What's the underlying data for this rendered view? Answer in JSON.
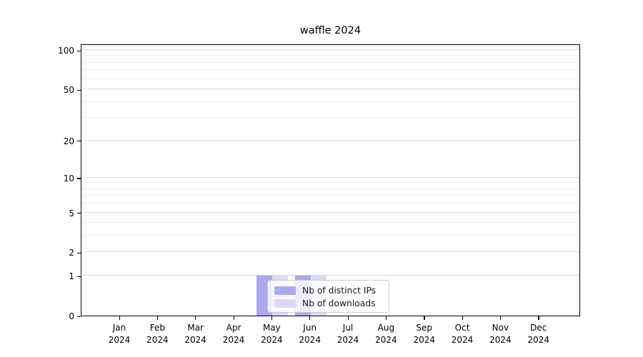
{
  "title": "waffle 2024",
  "colors": {
    "distinct_ips": "#aaaaee",
    "downloads": "#dbdbf7",
    "grid_major": "#dcdcdc",
    "grid_minor": "#f0f0f0",
    "spine": "#000000",
    "legend_border": "#cccccc"
  },
  "legend": {
    "items": [
      {
        "label": "Nb of distinct IPs",
        "color_key": "distinct_ips"
      },
      {
        "label": "Nb of downloads",
        "color_key": "downloads"
      }
    ]
  },
  "chart_data": {
    "type": "bar",
    "title": "waffle 2024",
    "categories": [
      "Jan 2024",
      "Feb 2024",
      "Mar 2024",
      "Apr 2024",
      "May 2024",
      "Jun 2024",
      "Jul 2024",
      "Aug 2024",
      "Sep 2024",
      "Oct 2024",
      "Nov 2024",
      "Dec 2024"
    ],
    "series": [
      {
        "name": "Nb of distinct IPs",
        "color_key": "distinct_ips",
        "values": [
          0,
          0,
          0,
          0,
          1,
          1,
          0,
          0,
          0,
          0,
          0,
          0
        ]
      },
      {
        "name": "Nb of downloads",
        "color_key": "downloads",
        "values": [
          0,
          0,
          0,
          0,
          1,
          1,
          0,
          0,
          0,
          0,
          0,
          0
        ]
      }
    ],
    "xlabel": "",
    "ylabel": "",
    "yscale": "log1p",
    "ylim": [
      0,
      112
    ],
    "yticks": [
      0,
      1,
      2,
      5,
      10,
      20,
      50,
      100
    ],
    "ytick_labels": [
      "0",
      "1",
      "2",
      "5",
      "10",
      "20",
      "50",
      "100"
    ],
    "yticks_minor": [
      3,
      4,
      6,
      7,
      8,
      9,
      30,
      40,
      60,
      70,
      80,
      90
    ],
    "grid": true,
    "legend_position": "inside lower-left-of-center"
  }
}
